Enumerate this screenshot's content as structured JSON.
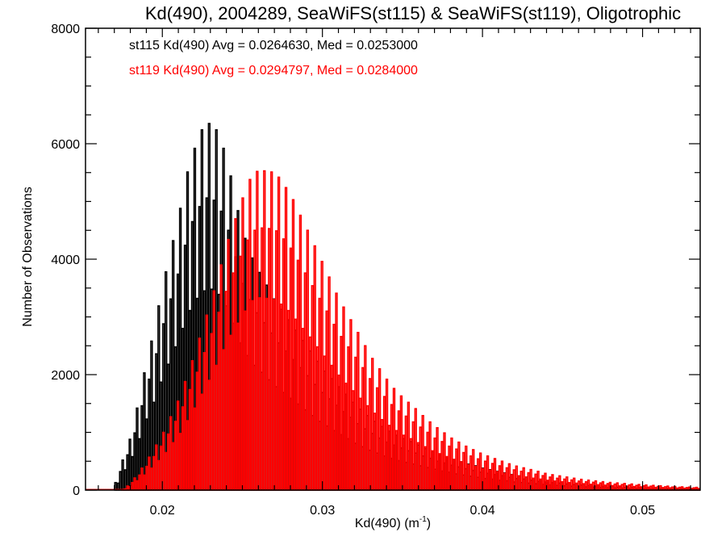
{
  "chart_data": {
    "type": "bar",
    "style": "step-histogram-outlined",
    "title": "Kd(490), 2004289, SeaWiFS(st115) & SeaWiFS(st119), Oligotrophic",
    "xlabel": "Kd(490) (m",
    "xlabel_superscript": "-1",
    "xlabel_suffix": ")",
    "ylabel": "Number of Observations",
    "xlim": [
      0.0152,
      0.0536
    ],
    "ylim": [
      0,
      8000
    ],
    "grid": false,
    "x_ticks": [
      0.02,
      0.03,
      0.04,
      0.05
    ],
    "x_tick_labels": [
      "0.02",
      "0.03",
      "0.04",
      "0.05"
    ],
    "x_minor_step": 0.001,
    "y_ticks": [
      0,
      2000,
      4000,
      6000,
      8000
    ],
    "y_tick_labels": [
      "0",
      "2000",
      "4000",
      "6000",
      "8000"
    ],
    "y_minor_step": 500,
    "bin_start": 0.0152,
    "bin_width": 0.00015,
    "annotations": [
      {
        "text": "st115 Kd(490) Avg = 0.0264630, Med = 0.0253000",
        "color": "#000000"
      },
      {
        "text": "st119 Kd(490) Avg = 0.0294797, Med = 0.0284000",
        "color": "#ff0000"
      }
    ],
    "series": [
      {
        "name": "st115",
        "color": "#000000",
        "avg": 0.026463,
        "median": 0.0253,
        "values": [
          0,
          0,
          0,
          0,
          0,
          0,
          0,
          0,
          0,
          0,
          0,
          0,
          130,
          120,
          320,
          520,
          350,
          610,
          880,
          580,
          990,
          1420,
          890,
          1460,
          2030,
          1230,
          1920,
          2580,
          1520,
          2360,
          3190,
          1870,
          2880,
          3780,
          2180,
          3310,
          4320,
          2480,
          3740,
          4880,
          2800,
          4240,
          5510,
          3110,
          4650,
          5920,
          3320,
          4910,
          6240,
          3450,
          5060,
          6350,
          3480,
          5020,
          6240,
          3390,
          4830,
          5920,
          3190,
          4500,
          5440,
          2890,
          4040,
          4840,
          2550,
          3580,
          4360,
          2330,
          3300,
          4020,
          2160,
          3070,
          3770,
          2040,
          2900,
          3550,
          1910,
          2720,
          3310,
          1790,
          2550,
          3130,
          1690,
          2410,
          2950,
          1590,
          2260,
          2770,
          1490,
          2120,
          2590,
          1390,
          1980,
          2410,
          1290,
          1830,
          2230,
          1190,
          1690,
          2060,
          1110,
          1580,
          1930,
          1030,
          1470,
          1790,
          960,
          1360,
          1660,
          890,
          1260,
          1520,
          810,
          1150,
          1400,
          750,
          1060,
          1290,
          690,
          980,
          1190,
          640,
          900,
          1100,
          590,
          830,
          1020,
          550,
          780,
          950,
          510,
          730,
          890,
          480,
          680,
          840,
          450,
          640,
          780,
          420,
          590,
          720,
          390,
          550,
          670,
          360,
          500,
          620,
          330,
          470,
          570,
          310,
          430,
          530,
          280,
          400,
          490,
          260,
          370,
          450,
          240,
          340,
          420,
          220,
          310,
          380,
          200,
          290,
          353,
          190,
          270,
          326,
          170,
          250,
          298,
          160,
          220,
          270,
          140,
          200,
          246,
          130,
          190,
          225,
          120,
          170,
          205,
          110,
          150,
          184,
          100,
          140,
          166,
          90,
          130,
          153,
          80,
          120,
          140,
          75,
          105,
          127,
          68,
          94,
          114,
          60,
          86,
          104,
          56,
          78,
          95,
          51,
          70,
          85,
          45,
          63,
          76,
          40,
          56,
          68,
          36,
          51,
          62,
          33,
          46,
          56,
          30,
          42,
          51,
          27,
          38,
          45,
          24,
          34,
          42,
          23,
          31,
          38,
          20,
          29,
          35,
          19,
          26,
          32,
          17,
          24,
          29,
          16,
          22,
          27,
          14,
          20,
          24,
          13,
          18,
          22
        ]
      },
      {
        "name": "st119",
        "color": "#ff0000",
        "avg": 0.0294797,
        "median": 0.0284,
        "values": [
          0,
          0,
          0,
          0,
          0,
          0,
          0,
          0,
          0,
          0,
          0,
          0,
          0,
          0,
          0,
          10,
          20,
          70,
          60,
          130,
          210,
          160,
          260,
          380,
          260,
          410,
          570,
          380,
          580,
          780,
          510,
          760,
          1000,
          650,
          970,
          1270,
          820,
          1190,
          1540,
          980,
          1440,
          1880,
          1200,
          1740,
          2240,
          1420,
          2040,
          2630,
          1660,
          2380,
          3030,
          1900,
          2710,
          3450,
          2160,
          3080,
          3900,
          2430,
          3440,
          4340,
          2680,
          3760,
          4700,
          2890,
          4050,
          5060,
          3100,
          4330,
          5380,
          3280,
          4500,
          5520,
          3330,
          4540,
          5530,
          3320,
          4530,
          5510,
          3300,
          4490,
          5420,
          3220,
          4350,
          5240,
          3110,
          4190,
          5030,
          2960,
          3980,
          4760,
          2800,
          3760,
          4500,
          2650,
          3540,
          4230,
          2480,
          3320,
          3960,
          2320,
          3100,
          3690,
          2160,
          2870,
          3410,
          1990,
          2660,
          3170,
          1850,
          2480,
          2950,
          1720,
          2300,
          2730,
          1590,
          2120,
          2500,
          1460,
          1930,
          2280,
          1330,
          1770,
          2100,
          1220,
          1620,
          1920,
          1120,
          1480,
          1760,
          1030,
          1370,
          1630,
          950,
          1280,
          1520,
          890,
          1180,
          1410,
          820,
          1090,
          1290,
          750,
          1000,
          1180,
          680,
          900,
          1080,
          630,
          840,
          990,
          580,
          760,
          900,
          530,
          710,
          830,
          490,
          650,
          760,
          440,
          590,
          700,
          410,
          540,
          640,
          370,
          500,
          590,
          345,
          460,
          545,
          320,
          420,
          500,
          290,
          385,
          455,
          265,
          350,
          415,
          245,
          325,
          385,
          225,
          300,
          355,
          205,
          275,
          325,
          190,
          250,
          290,
          170,
          225,
          266,
          155,
          205,
          246,
          145,
          190,
          226,
          130,
          175,
          205,
          120,
          155,
          186,
          110,
          145,
          172,
          100,
          135,
          159,
          92,
          123,
          145,
          85,
          112,
          132,
          77,
          103,
          123,
          72,
          96,
          114,
          67,
          89,
          105,
          61,
          81,
          96,
          56,
          74,
          88,
          52,
          68,
          81,
          47,
          63,
          74,
          43,
          57,
          68,
          39,
          52,
          61,
          35,
          48,
          56,
          32,
          43,
          51,
          30,
          39,
          47,
          27
        ]
      }
    ]
  }
}
